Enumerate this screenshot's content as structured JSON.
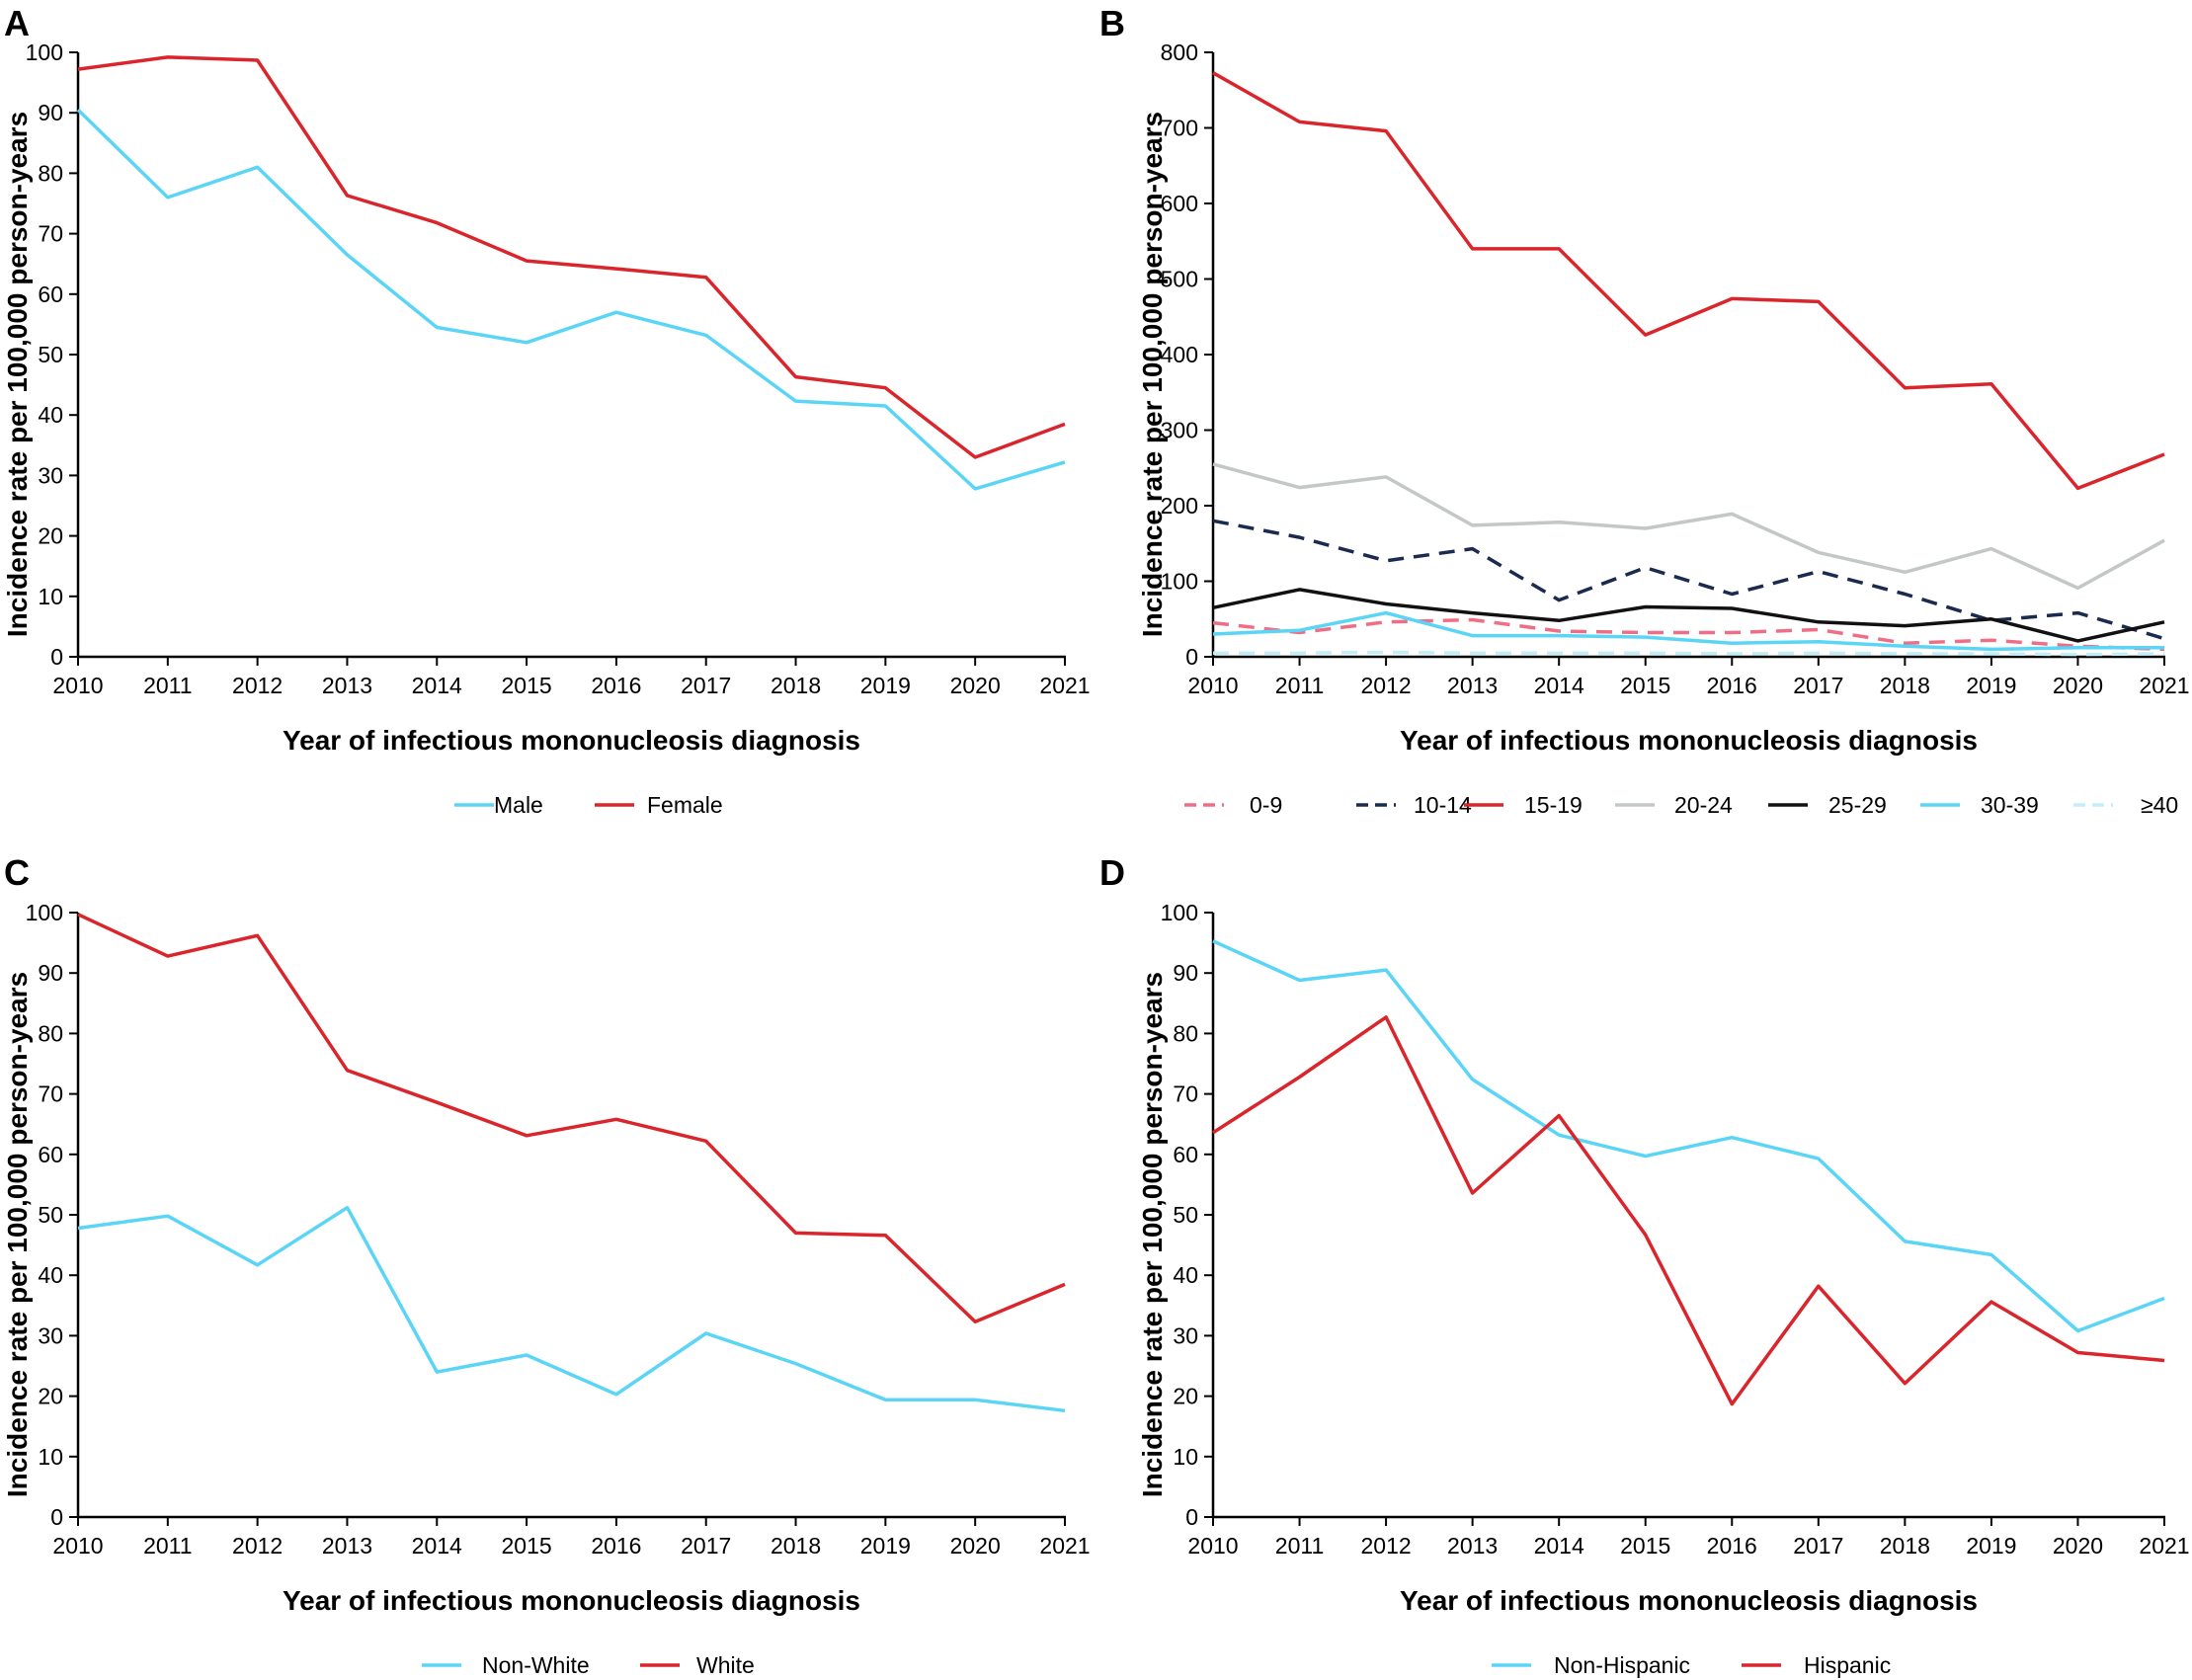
{
  "colors": {
    "cyan": "#5ad5f6",
    "red": "#d9252b",
    "pink_dashed": "#ee6e86",
    "navy_dashed": "#1b2a4f",
    "gray": "#c3c8c6",
    "black": "#111111",
    "light_cyan_dashed": "#c3eef8"
  },
  "chart_data": [
    {
      "panel": "A",
      "type": "line",
      "xlabel": "Year of infectious mononucleosis diagnosis",
      "ylabel": "Incidence rate per 100,000 person-years",
      "x": [
        "2010",
        "2011",
        "2012",
        "2013",
        "2014",
        "2015",
        "2016",
        "2017",
        "2018",
        "2019",
        "2020",
        "2021"
      ],
      "ylim": [
        0,
        100
      ],
      "yticks": [
        0,
        10,
        20,
        30,
        40,
        50,
        60,
        70,
        80,
        90,
        100
      ],
      "grid": false,
      "legend_position": "bottom",
      "series": [
        {
          "name": "Male",
          "color": "#5ad5f6",
          "dashed": false,
          "values": [
            90.5,
            76,
            81,
            66.5,
            54.5,
            52,
            57,
            53.2,
            42.3,
            41.5,
            27.8,
            32.2
          ]
        },
        {
          "name": "Female",
          "color": "#d9252b",
          "dashed": false,
          "values": [
            97.2,
            99.2,
            98.7,
            76.3,
            71.8,
            65.5,
            64.2,
            62.8,
            46.3,
            44.5,
            33,
            38.5
          ]
        }
      ]
    },
    {
      "panel": "B",
      "type": "line",
      "xlabel": "Year of infectious mononucleosis diagnosis",
      "ylabel": "Incidence rate per 100,000 person-years",
      "x": [
        "2010",
        "2011",
        "2012",
        "2013",
        "2014",
        "2015",
        "2016",
        "2017",
        "2018",
        "2019",
        "2020",
        "2021"
      ],
      "ylim": [
        0,
        800
      ],
      "yticks": [
        0,
        100,
        200,
        300,
        400,
        500,
        600,
        700,
        800
      ],
      "grid": false,
      "legend_position": "bottom",
      "series": [
        {
          "name": "0-9",
          "color": "#ee6e86",
          "dashed": true,
          "values": [
            45,
            32,
            46,
            49,
            34,
            32,
            32,
            36,
            18,
            22,
            14,
            10
          ]
        },
        {
          "name": "10-14",
          "color": "#1b2a4f",
          "dashed": true,
          "values": [
            180,
            158,
            127,
            143,
            75,
            118,
            83,
            113,
            83,
            48,
            58,
            24
          ]
        },
        {
          "name": "15-19",
          "color": "#d9252b",
          "dashed": false,
          "values": [
            773,
            708,
            696,
            540,
            540,
            426,
            474,
            470,
            356,
            361,
            223,
            268
          ]
        },
        {
          "name": "20-24",
          "color": "#c3c8c6",
          "dashed": false,
          "values": [
            255,
            224,
            238,
            174,
            178,
            170,
            189,
            138,
            112,
            143,
            91,
            154
          ]
        },
        {
          "name": "25-29",
          "color": "#111111",
          "dashed": false,
          "values": [
            65,
            89,
            70,
            58,
            48,
            66,
            64,
            46,
            41,
            50,
            21,
            46
          ]
        },
        {
          "name": "30-39",
          "color": "#5ad5f6",
          "dashed": false,
          "values": [
            30,
            35,
            58,
            28,
            28,
            26,
            18,
            20,
            14,
            10,
            12,
            12
          ]
        },
        {
          "name": "≥40",
          "color": "#c3eef8",
          "dashed": true,
          "values": [
            5,
            5,
            6,
            5,
            5,
            5,
            4,
            5,
            4,
            4,
            3,
            4
          ]
        }
      ]
    },
    {
      "panel": "C",
      "type": "line",
      "xlabel": "Year of infectious mononucleosis diagnosis",
      "ylabel": "Incidence rate per 100,000 person-years",
      "x": [
        "2010",
        "2011",
        "2012",
        "2013",
        "2014",
        "2015",
        "2016",
        "2017",
        "2018",
        "2019",
        "2020",
        "2021"
      ],
      "ylim": [
        0,
        100
      ],
      "yticks": [
        0,
        10,
        20,
        30,
        40,
        50,
        60,
        70,
        80,
        90,
        100
      ],
      "grid": false,
      "legend_position": "bottom",
      "series": [
        {
          "name": "Non-White",
          "color": "#5ad5f6",
          "dashed": false,
          "values": [
            47.8,
            49.8,
            41.7,
            51.2,
            24,
            26.8,
            20.3,
            30.4,
            25.4,
            19.4,
            19.4,
            17.6
          ]
        },
        {
          "name": "White",
          "color": "#d9252b",
          "dashed": false,
          "values": [
            99.7,
            92.8,
            96.2,
            73.9,
            68.6,
            63.1,
            65.8,
            62.2,
            47,
            46.6,
            32.3,
            38.5
          ]
        }
      ]
    },
    {
      "panel": "D",
      "type": "line",
      "xlabel": "Year of infectious mononucleosis diagnosis",
      "ylabel": "Incidence rate per 100,000 person-years",
      "x": [
        "2010",
        "2011",
        "2012",
        "2013",
        "2014",
        "2015",
        "2016",
        "2017",
        "2018",
        "2019",
        "2020",
        "2021"
      ],
      "ylim": [
        0,
        100
      ],
      "yticks": [
        0,
        10,
        20,
        30,
        40,
        50,
        60,
        70,
        80,
        90,
        100
      ],
      "grid": false,
      "legend_position": "bottom",
      "series": [
        {
          "name": "Non-Hispanic",
          "color": "#5ad5f6",
          "dashed": false,
          "values": [
            95.3,
            88.8,
            90.5,
            72.4,
            63.2,
            59.7,
            62.8,
            59.3,
            45.6,
            43.4,
            30.8,
            36.2
          ]
        },
        {
          "name": "Hispanic",
          "color": "#d9252b",
          "dashed": false,
          "values": [
            63.6,
            72.8,
            82.7,
            53.6,
            66.4,
            46.7,
            18.7,
            38.2,
            22.1,
            35.6,
            27.2,
            25.9
          ]
        }
      ]
    }
  ]
}
